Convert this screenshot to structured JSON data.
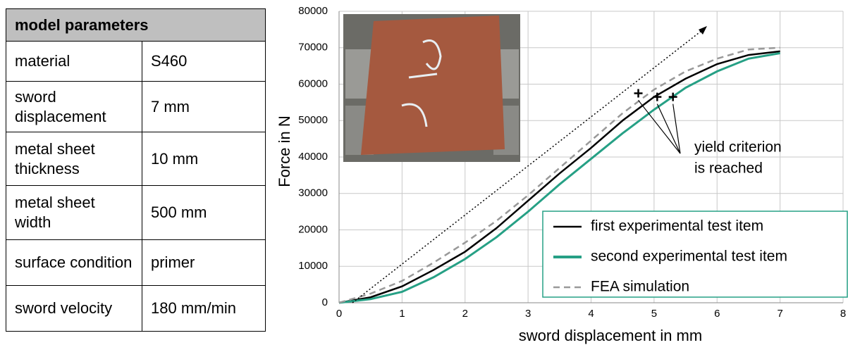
{
  "table": {
    "header": "model parameters",
    "rows": [
      [
        "material",
        "S460"
      ],
      [
        "sword displacement",
        "7 mm"
      ],
      [
        "metal sheet thickness",
        "10 mm"
      ],
      [
        "metal sheet width",
        "500 mm"
      ],
      [
        "surface condition",
        "primer"
      ],
      [
        "sword velocity",
        "180 mm/min"
      ]
    ]
  },
  "chart_data": {
    "type": "line",
    "x_label": "sword displacement in mm",
    "y_label": "Force in N",
    "x": [
      0,
      0.5,
      1,
      1.5,
      2,
      2.5,
      3,
      3.5,
      4,
      4.5,
      5,
      5.5,
      6,
      6.5,
      7
    ],
    "series": [
      {
        "name": "first experimental test item",
        "color": "#000000",
        "linestyle": "solid",
        "values": [
          0,
          1500,
          4500,
          9000,
          14000,
          20500,
          28000,
          35500,
          42500,
          50000,
          56500,
          61500,
          65500,
          68000,
          69000
        ]
      },
      {
        "name": "second experimental test item",
        "color": "#26a085",
        "linestyle": "solid",
        "values": [
          0,
          1000,
          3000,
          7000,
          12000,
          18000,
          25000,
          32500,
          39500,
          46500,
          53000,
          59000,
          63500,
          67000,
          68500
        ]
      },
      {
        "name": "FEA simulation",
        "color": "#999999",
        "linestyle": "dashed",
        "values": [
          0,
          2500,
          6000,
          11000,
          16500,
          22500,
          29500,
          37000,
          44500,
          52000,
          58500,
          63500,
          67000,
          69500,
          70000
        ]
      }
    ],
    "markers": {
      "x": [
        4.75,
        5.05,
        5.3
      ],
      "values": [
        57500,
        56500,
        56500
      ]
    },
    "annotation": [
      "yield criterion",
      "is reached"
    ],
    "xlim": [
      0,
      8
    ],
    "xticks": [
      0,
      1,
      2,
      3,
      4,
      5,
      6,
      7,
      8
    ],
    "ylim": [
      0,
      80000
    ],
    "yticks": [
      0,
      10000,
      20000,
      30000,
      40000,
      50000,
      60000,
      70000,
      80000
    ],
    "grid": true,
    "legend": "lower right"
  }
}
